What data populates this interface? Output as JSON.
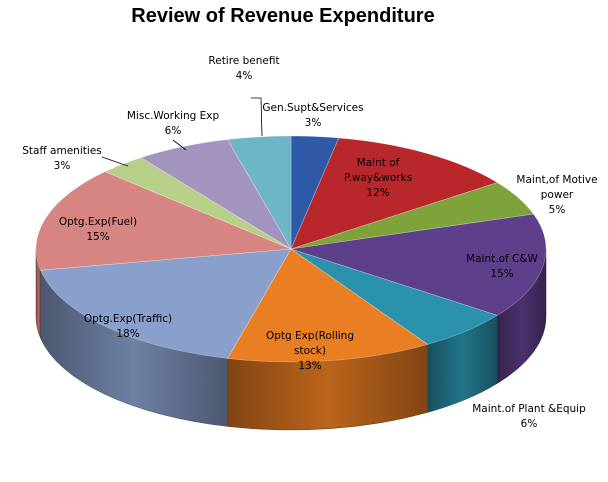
{
  "chart_data": {
    "type": "pie",
    "title": "Review of Revenue Expenditure",
    "slices": [
      {
        "label": "Gen.Supt&Services",
        "value": 3,
        "value_label": "3%",
        "color": "#2e5aa8"
      },
      {
        "label": "Maint of P.way&works",
        "value": 12,
        "value_label": "12%",
        "color": "#b8282a"
      },
      {
        "label": "Maint,of Motive power",
        "value": 5,
        "value_label": "5%",
        "color": "#7ea33a"
      },
      {
        "label": "Maint.of C&W",
        "value": 15,
        "value_label": "15%",
        "color": "#5e3f8c"
      },
      {
        "label": "Maint.of Plant &Equip",
        "value": 6,
        "value_label": "6%",
        "color": "#2b92ad"
      },
      {
        "label": "Optg Exp(Rolling stock)",
        "value": 13,
        "value_label": "13%",
        "color": "#ea7e23"
      },
      {
        "label": "Optg.Exp(Traffic)",
        "value": 18,
        "value_label": "18%",
        "color": "#8aa0cc"
      },
      {
        "label": "Optg.Exp(Fuel)",
        "value": 15,
        "value_label": "15%",
        "color": "#d68582"
      },
      {
        "label": "Staff amenities",
        "value": 3,
        "value_label": "3%",
        "color": "#b6d08a"
      },
      {
        "label": "Misc.Working Exp",
        "value": 6,
        "value_label": "6%",
        "color": "#a393bf"
      },
      {
        "label": "Retire benefit",
        "value": 4,
        "value_label": "4%",
        "color": "#6fb5c8"
      }
    ]
  }
}
